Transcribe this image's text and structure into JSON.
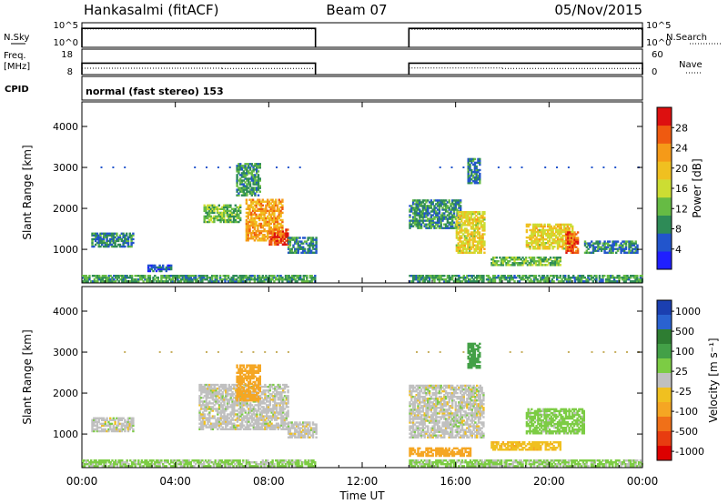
{
  "header": {
    "station": "Hankasalmi (fitACF)",
    "beam": "Beam 07",
    "date": "05/Nov/2015"
  },
  "noise_panel": {
    "left_label": "N.Sky",
    "right_label": "N.Search",
    "left_ticks": [
      "10^5",
      "10^0"
    ],
    "right_ticks": [
      "10^5",
      "10^0"
    ]
  },
  "freq_panel": {
    "left_label_line1": "Freq.",
    "left_label_line2": "[MHz]",
    "right_label": "Nave",
    "left_ticks": [
      "18",
      "8"
    ],
    "right_ticks": [
      "60",
      "0"
    ]
  },
  "cpid": {
    "label": "CPID",
    "value": "normal (fast stereo) 153"
  },
  "x_axis": {
    "label": "Time UT",
    "tick_labels": [
      "00:00",
      "04:00",
      "08:00",
      "12:00",
      "16:00",
      "20:00",
      "00:00"
    ]
  },
  "y_axis": {
    "label": "Slant Range [km]",
    "tick_labels": [
      "1000",
      "2000",
      "3000",
      "4000"
    ]
  },
  "colorbars": {
    "power": {
      "label": "Power [dB]",
      "ticks": [
        "4",
        "8",
        "12",
        "16",
        "20",
        "24",
        "28"
      ],
      "colors": [
        "#1f1fff",
        "#2255cc",
        "#2e8b57",
        "#66bb44",
        "#ccdd33",
        "#f0c020",
        "#f59a18",
        "#ef5a10",
        "#dd1010"
      ]
    },
    "velocity": {
      "label": "Velocity [m s⁻¹]",
      "ticks": [
        "1000",
        "500",
        "100",
        "25",
        "-25",
        "-100",
        "-500",
        "-1000"
      ],
      "colors": [
        "#1b3fb0",
        "#2a62d0",
        "#2e7d32",
        "#43a047",
        "#7ccc44",
        "#c0c0c0",
        "#f0c020",
        "#f5a623",
        "#f07018",
        "#e83c10",
        "#dd0000"
      ]
    }
  },
  "chart_data": {
    "type": "heatmap",
    "x_unit": "hours UT",
    "xlim": [
      0,
      24
    ],
    "ylim": [
      180,
      4600
    ],
    "data_gap_hours": [
      10,
      14
    ],
    "noise": {
      "n_sky_log10": [
        {
          "x": [
            0,
            10
          ],
          "value": 4.0
        },
        {
          "x": [
            14,
            24
          ],
          "value": 4.0
        }
      ],
      "n_search_log10": [
        {
          "x": [
            0,
            10
          ],
          "value": 3.9
        },
        {
          "x": [
            14,
            24
          ],
          "value": 3.8
        }
      ]
    },
    "frequency_mhz": [
      {
        "x": [
          0,
          6
        ],
        "value": 10.5
      },
      {
        "x": [
          6,
          10
        ],
        "value": 10.4
      },
      {
        "x": [
          14,
          18
        ],
        "value": 10.6
      },
      {
        "x": [
          18,
          24
        ],
        "value": 10.4
      }
    ],
    "nave": [
      {
        "x": [
          0,
          10
        ],
        "value": 27
      },
      {
        "x": [
          14,
          24
        ],
        "value": 27
      }
    ],
    "power_regions": [
      {
        "t0": 0.4,
        "t1": 2.2,
        "r0": 1050,
        "r1": 1400,
        "power_db": 8
      },
      {
        "t0": 2.8,
        "t1": 3.8,
        "r0": 450,
        "r1": 620,
        "power_db": 6
      },
      {
        "t0": 5.2,
        "t1": 6.8,
        "r0": 1650,
        "r1": 2100,
        "power_db": 12
      },
      {
        "t0": 6.6,
        "t1": 7.6,
        "r0": 2300,
        "r1": 3100,
        "power_db": 10
      },
      {
        "t0": 7.0,
        "t1": 8.6,
        "r0": 1200,
        "r1": 2200,
        "power_db": 22
      },
      {
        "t0": 8.0,
        "t1": 8.8,
        "r0": 1100,
        "r1": 1500,
        "power_db": 27
      },
      {
        "t0": 8.8,
        "t1": 10.0,
        "r0": 900,
        "r1": 1300,
        "power_db": 8
      },
      {
        "t0": 14.0,
        "t1": 16.2,
        "r0": 1500,
        "r1": 2200,
        "power_db": 9
      },
      {
        "t0": 16.0,
        "t1": 17.2,
        "r0": 900,
        "r1": 1900,
        "power_db": 18
      },
      {
        "t0": 16.5,
        "t1": 17.0,
        "r0": 2600,
        "r1": 3200,
        "power_db": 8
      },
      {
        "t0": 17.5,
        "t1": 20.5,
        "r0": 600,
        "r1": 800,
        "power_db": 12
      },
      {
        "t0": 19.0,
        "t1": 21.0,
        "r0": 1000,
        "r1": 1600,
        "power_db": 18
      },
      {
        "t0": 20.7,
        "t1": 21.2,
        "r0": 900,
        "r1": 1400,
        "power_db": 27
      },
      {
        "t0": 21.5,
        "t1": 23.8,
        "r0": 900,
        "r1": 1200,
        "power_db": 8
      },
      {
        "t0": 0.0,
        "t1": 10.0,
        "r0": 200,
        "r1": 380,
        "power_db": 10
      },
      {
        "t0": 14.0,
        "t1": 24.0,
        "r0": 200,
        "r1": 380,
        "power_db": 10
      }
    ],
    "velocity_regions": [
      {
        "t0": 0.4,
        "t1": 2.2,
        "r0": 1050,
        "r1": 1400,
        "velocity_ms": 0
      },
      {
        "t0": 5.0,
        "t1": 8.8,
        "r0": 1100,
        "r1": 2200,
        "velocity_ms": 0
      },
      {
        "t0": 6.6,
        "t1": 7.6,
        "r0": 1800,
        "r1": 2700,
        "velocity_ms": -200
      },
      {
        "t0": 8.8,
        "t1": 10.0,
        "r0": 900,
        "r1": 1300,
        "velocity_ms": 0
      },
      {
        "t0": 14.0,
        "t1": 17.2,
        "r0": 900,
        "r1": 2200,
        "velocity_ms": 0
      },
      {
        "t0": 14.0,
        "t1": 16.6,
        "r0": 450,
        "r1": 650,
        "velocity_ms": -250
      },
      {
        "t0": 16.5,
        "t1": 17.0,
        "r0": 2600,
        "r1": 3200,
        "velocity_ms": 150
      },
      {
        "t0": 17.5,
        "t1": 20.5,
        "r0": 600,
        "r1": 800,
        "velocity_ms": -80
      },
      {
        "t0": 19.0,
        "t1": 21.5,
        "r0": 1000,
        "r1": 1600,
        "velocity_ms": 50
      },
      {
        "t0": 0.0,
        "t1": 10.0,
        "r0": 200,
        "r1": 380,
        "velocity_ms": 40
      },
      {
        "t0": 14.0,
        "t1": 24.0,
        "r0": 200,
        "r1": 380,
        "velocity_ms": 40
      }
    ]
  }
}
